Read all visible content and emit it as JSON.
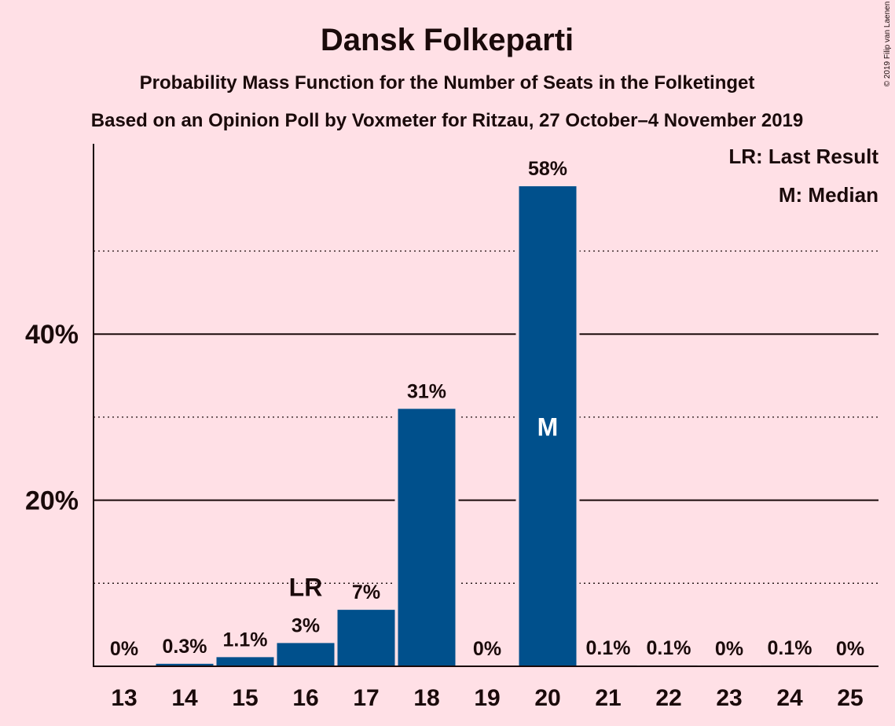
{
  "title": "Dansk Folkeparti",
  "subtitle1": "Probability Mass Function for the Number of Seats in the Folketinget",
  "subtitle2": "Based on an Opinion Poll by Voxmeter for Ritzau, 27 October–4 November 2019",
  "copyright": "© 2019 Filip van Laenen",
  "legend": {
    "lr": "LR: Last Result",
    "median": "M: Median"
  },
  "colors": {
    "background": "#ffe0e6",
    "bar": "#00508c",
    "text": "#1a0a0a"
  },
  "chart_data": {
    "type": "bar",
    "categories": [
      "13",
      "14",
      "15",
      "16",
      "17",
      "18",
      "19",
      "20",
      "21",
      "22",
      "23",
      "24",
      "25"
    ],
    "values": [
      0,
      0.3,
      1.1,
      2.8,
      6.8,
      31.0,
      0,
      57.8,
      0.1,
      0.1,
      0,
      0.1,
      0
    ],
    "labels": [
      "0%",
      "0.3%",
      "1.1%",
      "3%",
      "7%",
      "31%",
      "0%",
      "58%",
      "0.1%",
      "0.1%",
      "0%",
      "0.1%",
      "0%"
    ],
    "ylim": [
      0,
      63
    ],
    "yticks": [
      {
        "value": 20,
        "label": "20%"
      },
      {
        "value": 40,
        "label": "40%"
      }
    ],
    "minor_grid": [
      10,
      30,
      50
    ],
    "last_result": {
      "category": "16",
      "label": "LR"
    },
    "median": {
      "category": "20",
      "label": "M"
    }
  }
}
